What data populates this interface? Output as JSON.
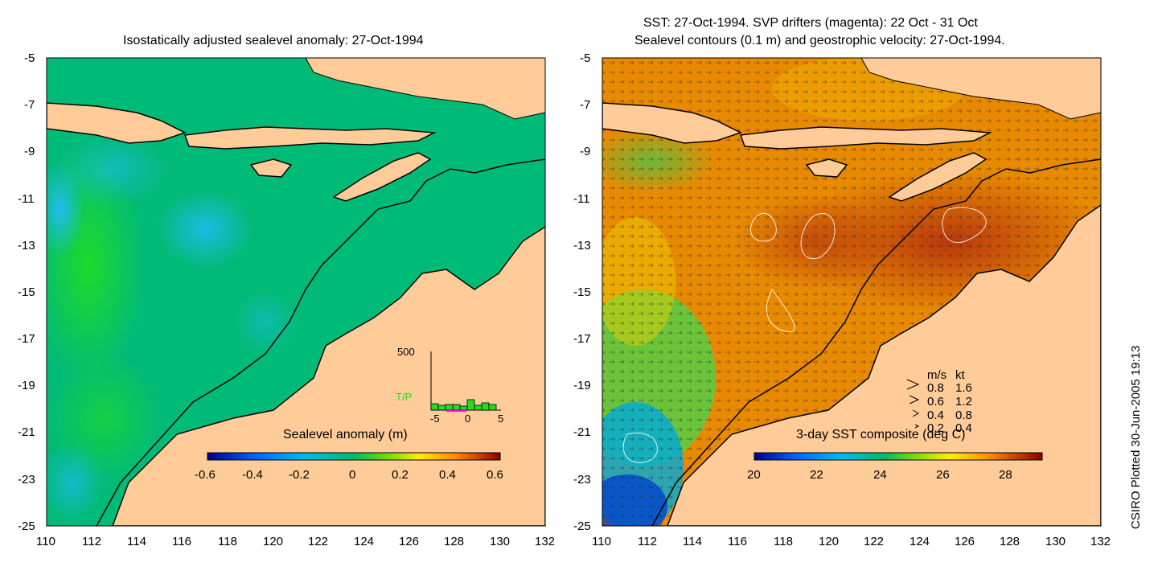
{
  "left_panel": {
    "title": "Isostatically adjusted sealevel anomaly: 27-Oct-1994",
    "colorbar_label": "Sealevel anomaly (m)",
    "colorbar_ticks": [
      "-0.6",
      "-0.4",
      "-0.2",
      "0",
      "0.2",
      "0.4",
      "0.6"
    ],
    "inset": {
      "y_label": "500",
      "series_label": "T/P",
      "x_ticks": [
        "-5",
        "0",
        "5"
      ]
    }
  },
  "right_panel": {
    "title_line1": "SST: 27-Oct-1994. SVP drifters (magenta): 22 Oct - 31 Oct",
    "title_line2": "Sealevel contours (0.1 m) and geostrophic velocity: 27-Oct-1994.",
    "colorbar_label": "3-day SST composite (deg C)",
    "colorbar_ticks": [
      "20",
      "22",
      "24",
      "26",
      "28"
    ],
    "velocity_legend": {
      "header_ms": "m/s",
      "header_kt": "kt",
      "rows": [
        {
          "ms": "0.8",
          "kt": "1.6"
        },
        {
          "ms": "0.6",
          "kt": "1.2"
        },
        {
          "ms": "0.4",
          "kt": "0.8"
        },
        {
          "ms": "0.2",
          "kt": "0.4"
        }
      ]
    }
  },
  "axes": {
    "lat_ticks": [
      "-5",
      "-7",
      "-9",
      "-11",
      "-13",
      "-15",
      "-17",
      "-19",
      "-21",
      "-23",
      "-25"
    ],
    "lon_ticks": [
      "110",
      "112",
      "114",
      "116",
      "118",
      "120",
      "122",
      "124",
      "126",
      "128",
      "130",
      "132"
    ]
  },
  "credit": "CSIRO Plotted 30-Jun-2005 19:13",
  "colors": {
    "land": "#ffcc99",
    "ocean_left": "#00bb77",
    "ocean_right": "#e88a00"
  }
}
